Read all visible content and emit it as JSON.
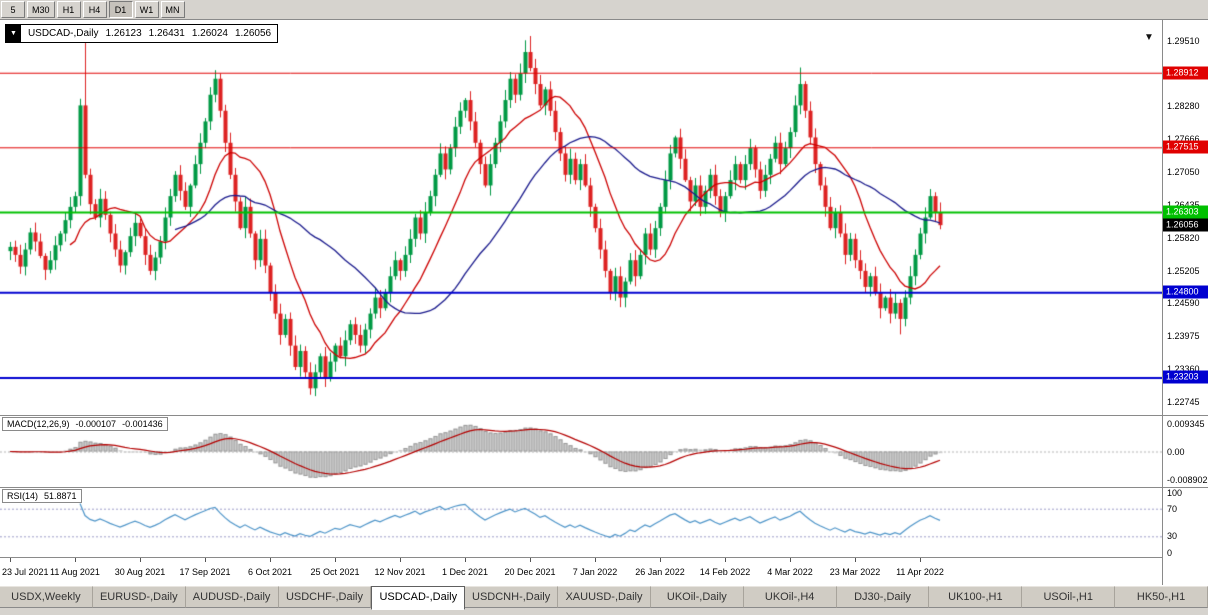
{
  "toolbar": {
    "timeframes": [
      {
        "label": "5",
        "active": false
      },
      {
        "label": "M30",
        "active": false
      },
      {
        "label": "H1",
        "active": false
      },
      {
        "label": "H4",
        "active": false
      },
      {
        "label": "D1",
        "active": true
      },
      {
        "label": "W1",
        "active": false
      },
      {
        "label": "MN",
        "active": false
      }
    ]
  },
  "chart_header": {
    "collapse_arrow": "▼",
    "shift_marker": "▼",
    "symbol_label": "USDCAD-,Daily",
    "ohlc": [
      "1.26123",
      "1.26431",
      "1.26024",
      "1.26056"
    ]
  },
  "chart_data": {
    "type": "candlestick",
    "symbol": "USDCAD-",
    "timeframe": "Daily",
    "title": "USDCAD-,Daily",
    "x_labels": [
      "23 Jul 2021",
      "11 Aug 2021",
      "30 Aug 2021",
      "17 Sep 2021",
      "6 Oct 2021",
      "25 Oct 2021",
      "12 Nov 2021",
      "1 Dec 2021",
      "20 Dec 2021",
      "7 Jan 2022",
      "26 Jan 2022",
      "14 Feb 2022",
      "4 Mar 2022",
      "23 Mar 2022",
      "11 Apr 2022"
    ],
    "x_label_indices": [
      0,
      13,
      26,
      39,
      52,
      65,
      78,
      91,
      104,
      117,
      130,
      143,
      156,
      169,
      182
    ],
    "y_tick_labels": [
      "1.29510",
      "1.28280",
      "1.27666",
      "1.27050",
      "1.26435",
      "1.25820",
      "1.25205",
      "1.24590",
      "1.23975",
      "1.23360",
      "1.22745"
    ],
    "y_tick_values": [
      1.2951,
      1.2828,
      1.27666,
      1.2705,
      1.26435,
      1.2582,
      1.25205,
      1.2459,
      1.23975,
      1.2336,
      1.22745
    ],
    "price_range": [
      1.225,
      1.299
    ],
    "closes": [
      1.2565,
      1.255,
      1.2528,
      1.256,
      1.2592,
      1.2575,
      1.2548,
      1.2522,
      1.254,
      1.2568,
      1.259,
      1.2615,
      1.264,
      1.266,
      1.283,
      1.27,
      1.2645,
      1.262,
      1.2655,
      1.2625,
      1.259,
      1.256,
      1.253,
      1.2555,
      1.2585,
      1.261,
      1.2585,
      1.255,
      1.252,
      1.2545,
      1.2575,
      1.262,
      1.266,
      1.27,
      1.267,
      1.264,
      1.268,
      1.272,
      1.276,
      1.28,
      1.285,
      1.288,
      1.282,
      1.276,
      1.27,
      1.265,
      1.26,
      1.264,
      1.259,
      1.254,
      1.258,
      1.253,
      1.248,
      1.244,
      1.24,
      1.243,
      1.238,
      1.234,
      1.237,
      1.233,
      1.23,
      1.233,
      1.236,
      1.232,
      1.235,
      1.238,
      1.236,
      1.239,
      1.242,
      1.24,
      1.238,
      1.241,
      1.244,
      1.247,
      1.245,
      1.248,
      1.251,
      1.254,
      1.252,
      1.255,
      1.258,
      1.262,
      1.259,
      1.263,
      1.266,
      1.27,
      1.274,
      1.271,
      1.275,
      1.279,
      1.282,
      1.284,
      1.28,
      1.276,
      1.272,
      1.268,
      1.272,
      1.276,
      1.28,
      1.284,
      1.288,
      1.285,
      1.289,
      1.293,
      1.29,
      1.287,
      1.283,
      1.286,
      1.282,
      1.278,
      1.274,
      1.27,
      1.273,
      1.269,
      1.272,
      1.268,
      1.264,
      1.26,
      1.256,
      1.252,
      1.248,
      1.251,
      1.247,
      1.25,
      1.254,
      1.251,
      1.255,
      1.259,
      1.256,
      1.26,
      1.264,
      1.269,
      1.274,
      1.277,
      1.273,
      1.269,
      1.265,
      1.268,
      1.264,
      1.267,
      1.27,
      1.266,
      1.263,
      1.266,
      1.269,
      1.272,
      1.269,
      1.272,
      1.275,
      1.271,
      1.267,
      1.27,
      1.273,
      1.276,
      1.272,
      1.275,
      1.278,
      1.283,
      1.287,
      1.282,
      1.277,
      1.272,
      1.268,
      1.264,
      1.26,
      1.263,
      1.259,
      1.255,
      1.258,
      1.254,
      1.252,
      1.249,
      1.251,
      1.248,
      1.245,
      1.247,
      1.244,
      1.246,
      1.243,
      1.247,
      1.251,
      1.255,
      1.259,
      1.262,
      1.266,
      1.263,
      1.26056
    ],
    "spike_highs": {
      "15": 1.2948,
      "41": 1.2896,
      "103": 1.2952,
      "104": 1.296,
      "158": 1.2901
    },
    "spike_lows": {
      "60": 1.2288,
      "122": 1.2452,
      "178": 1.2401
    },
    "candle_up_color": "#009944",
    "candle_down_color": "#dd2222",
    "overlays": [
      {
        "name": "ma-fast",
        "period": 13,
        "color": "#cc0000"
      },
      {
        "name": "ma-slow",
        "period": 34,
        "color": "#1a1a8c"
      }
    ],
    "hlines": [
      {
        "price": 1.28912,
        "label": "1.28912",
        "color": "#e00000",
        "width": 1
      },
      {
        "price": 1.27515,
        "label": "1.27515",
        "color": "#e00000",
        "width": 1
      },
      {
        "price": 1.26303,
        "label": "1.26303",
        "color": "#00c000",
        "width": 2
      },
      {
        "price": 1.248,
        "label": "1.24800",
        "color": "#0000d0",
        "width": 2
      },
      {
        "price": 1.23203,
        "label": "1.23203",
        "color": "#0000d0",
        "width": 2
      }
    ],
    "current_price": {
      "value": 1.26056,
      "label": "1.26056",
      "badge_color": "#000000"
    },
    "indicators": [
      {
        "name": "MACD",
        "label": "MACD(12,26,9)",
        "values_text": [
          "-0.000107",
          "-0.001436"
        ],
        "params": {
          "fast": 12,
          "slow": 26,
          "signal": 9
        },
        "axis_labels": [
          "0.009345",
          "0.00",
          "-0.008902"
        ],
        "histogram_color": "#cccccc",
        "histogram_outline": "#9a9a9a",
        "signal_color": "#b40000"
      },
      {
        "name": "RSI",
        "label": "RSI(14)",
        "value_text": "51.8871",
        "period": 14,
        "axis_labels": [
          "100",
          "70",
          "30",
          "0"
        ],
        "levels": [
          70,
          30
        ],
        "line_color": "#4d94c8",
        "level_color": "#9c9cc8"
      }
    ]
  },
  "bottom_tabs": {
    "active_index": 4,
    "items": [
      "USDX,Weekly",
      "EURUSD-,Daily",
      "AUDUSD-,Daily",
      "USDCHF-,Daily",
      "USDCAD-,Daily",
      "USDCNH-,Daily",
      "XAUUSD-,Daily",
      "UKOil-,Daily",
      "UKOil-,H4",
      "DJ30-,Daily",
      "UK100-,H1",
      "USOil-,H1",
      "HK50-,H1"
    ]
  }
}
